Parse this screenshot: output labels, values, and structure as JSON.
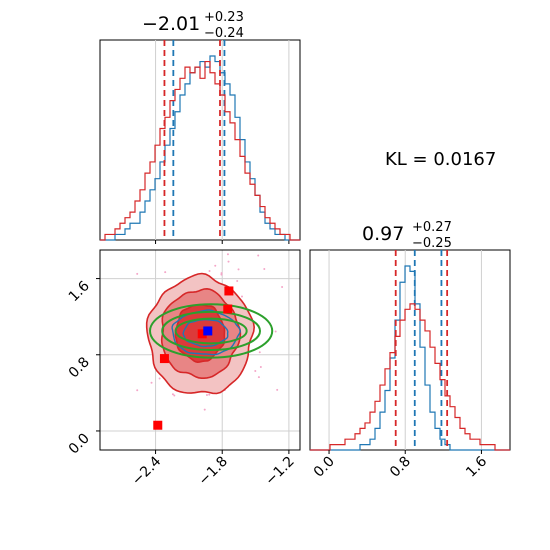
{
  "chart_data": [
    {
      "panel": "marginal-param-1",
      "type": "histogram",
      "title": {
        "median": "−2.01",
        "plus": "+0.23",
        "minus": "−0.24"
      },
      "xlim": [
        -2.9,
        -1.1
      ],
      "grid": true,
      "series": [
        {
          "color": "#1f77b4",
          "center": -1.97,
          "sigma": 0.22,
          "quantiles": [
            -2.24,
            -1.78
          ],
          "values": [
            0,
            0,
            0,
            1,
            1,
            2,
            3,
            3,
            5,
            7,
            9,
            11,
            14,
            17,
            20,
            23,
            26,
            28,
            30,
            31,
            32,
            31,
            33,
            32,
            30,
            28,
            26,
            22,
            18,
            14,
            11,
            8,
            5,
            3,
            2,
            1,
            1,
            0,
            0,
            0
          ]
        },
        {
          "color": "#d62728",
          "center": -2.02,
          "sigma": 0.25,
          "quantiles": [
            -2.32,
            -1.82
          ],
          "values": [
            0,
            1,
            1,
            2,
            3,
            4,
            5,
            7,
            9,
            12,
            14,
            17,
            20,
            22,
            25,
            27,
            29,
            31,
            30,
            31,
            29,
            32,
            30,
            28,
            26,
            23,
            21,
            18,
            15,
            12,
            10,
            8,
            6,
            4,
            3,
            2,
            1,
            1,
            0,
            0
          ]
        }
      ]
    },
    {
      "panel": "marginal-param-2",
      "type": "histogram",
      "title": {
        "median": "0.97",
        "plus": "+0.27",
        "minus": "−0.25"
      },
      "xlim": [
        -0.2,
        1.9
      ],
      "xticks": [
        "0.0",
        "0.8",
        "1.6"
      ],
      "grid": true,
      "series": [
        {
          "color": "#1f77b4",
          "center": 1.03,
          "sigma": 0.15,
          "quantiles": [
            0.9,
            1.18
          ],
          "values": [
            0,
            0,
            0,
            0,
            0,
            0,
            0,
            0,
            0,
            0,
            1,
            1,
            2,
            4,
            7,
            11,
            17,
            24,
            31,
            34,
            33,
            27,
            19,
            12,
            7,
            4,
            2,
            1,
            0,
            0,
            0,
            0,
            0,
            0,
            0,
            0,
            0,
            0,
            0,
            0
          ]
        },
        {
          "color": "#d62728",
          "center": 0.97,
          "sigma": 0.27,
          "quantiles": [
            0.7,
            1.24
          ],
          "values": [
            0,
            0,
            0,
            0,
            1,
            1,
            1,
            2,
            2,
            3,
            4,
            5,
            7,
            9,
            12,
            15,
            18,
            21,
            24,
            26,
            27,
            26,
            24,
            22,
            19,
            16,
            13,
            10,
            8,
            6,
            4,
            3,
            2,
            2,
            1,
            1,
            1,
            0,
            0,
            0
          ]
        }
      ]
    },
    {
      "panel": "joint-param-1-vs-param-2",
      "type": "contour",
      "xlim": [
        -2.9,
        -1.1
      ],
      "ylim": [
        -0.2,
        1.9
      ],
      "xticks": [
        "−2.4",
        "−1.8",
        "−1.2"
      ],
      "yticks": [
        "0.0",
        "0.8",
        "1.6"
      ],
      "grid": true,
      "red_contours": [
        {
          "cx": -2.0,
          "cy": 1.0,
          "rx": 0.47,
          "ry": 0.62,
          "fill": "#f3c3c3",
          "stroke": "#d62728"
        },
        {
          "cx": -2.0,
          "cy": 1.02,
          "rx": 0.35,
          "ry": 0.46,
          "fill": "#e88585",
          "stroke": "#d62728"
        },
        {
          "cx": -2.0,
          "cy": 1.03,
          "rx": 0.22,
          "ry": 0.3,
          "fill": "#dc3a3a",
          "stroke": "#d62728"
        }
      ],
      "blue_contours": [
        {
          "cx": -1.95,
          "cy": 1.03,
          "rx": 0.3,
          "ry": 0.23,
          "stroke": "#1f77b4"
        },
        {
          "cx": -1.95,
          "cy": 1.03,
          "rx": 0.2,
          "ry": 0.14,
          "stroke": "#1f77b4"
        }
      ],
      "green_contours": [
        {
          "cx": -1.9,
          "cy": 1.05,
          "rx": 0.55,
          "ry": 0.28,
          "stroke": "#2ca02c"
        },
        {
          "cx": -1.9,
          "cy": 1.05,
          "rx": 0.44,
          "ry": 0.2,
          "stroke": "#2ca02c"
        },
        {
          "cx": -1.9,
          "cy": 1.05,
          "rx": 0.32,
          "ry": 0.13,
          "stroke": "#2ca02c"
        }
      ],
      "red_markers": [
        {
          "x": -2.38,
          "y": 0.06
        },
        {
          "x": -2.32,
          "y": 0.76
        },
        {
          "x": -1.75,
          "y": 1.28
        },
        {
          "x": -1.74,
          "y": 1.47
        },
        {
          "x": -1.98,
          "y": 1.02
        }
      ],
      "blue_marker": {
        "x": -1.93,
        "y": 1.05
      },
      "scatter_color": "#f4a6c8"
    }
  ],
  "kl": {
    "label": "KL = 0.0167"
  },
  "colors": {
    "blue": "#1f77b4",
    "red": "#d62728",
    "green": "#2ca02c",
    "grid": "#d0d0d0"
  }
}
